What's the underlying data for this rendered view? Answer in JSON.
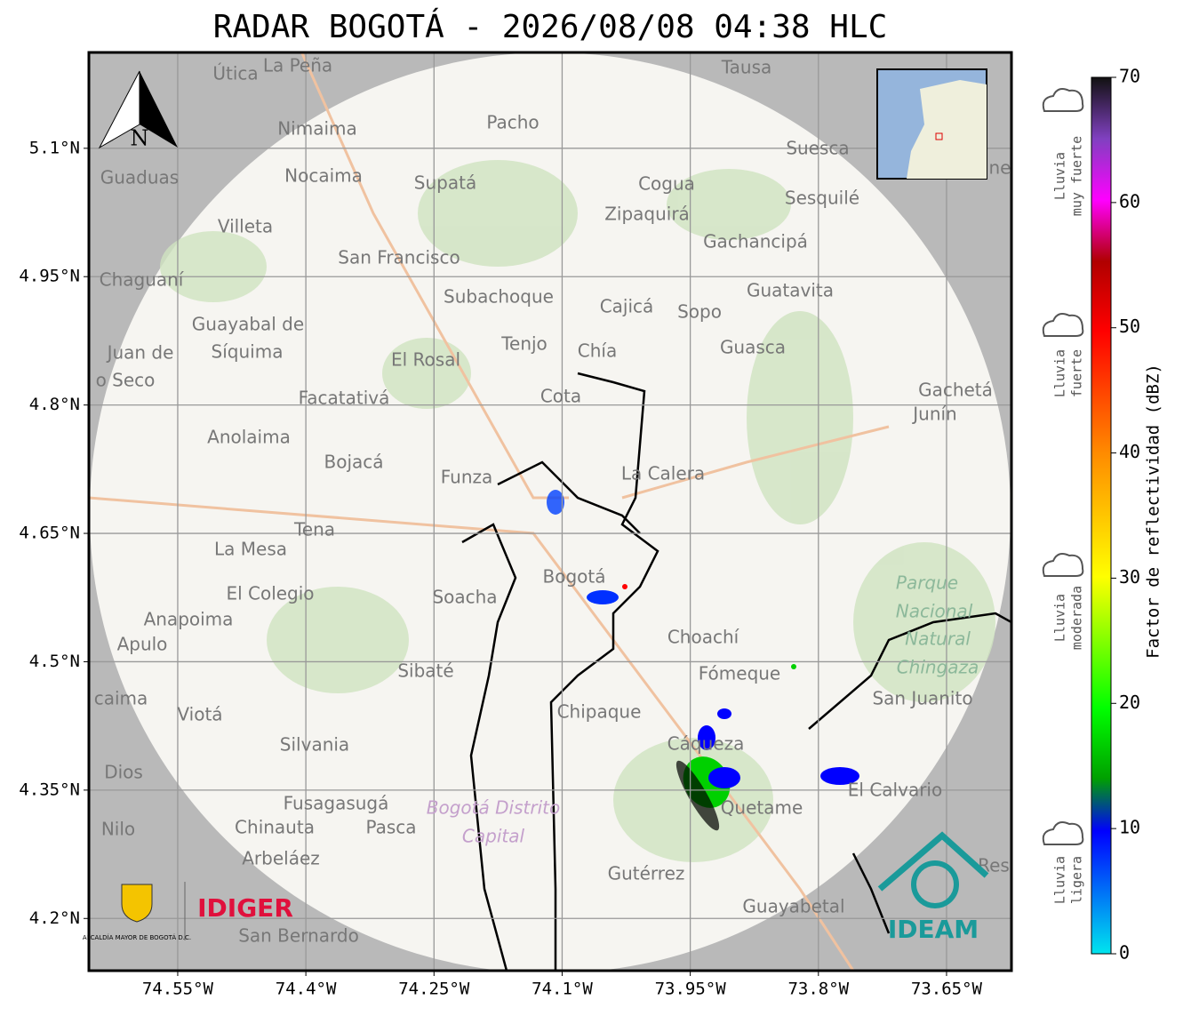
{
  "title": "RADAR BOGOTÁ - 2026/08/08 04:38 HLC",
  "map": {
    "xlim": [
      -74.654,
      -73.574
    ],
    "ylim": [
      4.139,
      5.212
    ],
    "xticks": [
      {
        "value": -74.55,
        "label": "74.55°W"
      },
      {
        "value": -74.4,
        "label": "74.4°W"
      },
      {
        "value": -74.25,
        "label": "74.25°W"
      },
      {
        "value": -74.1,
        "label": "74.1°W"
      },
      {
        "value": -73.95,
        "label": "73.95°W"
      },
      {
        "value": -73.8,
        "label": "73.8°W"
      },
      {
        "value": -73.65,
        "label": "73.65°W"
      }
    ],
    "yticks": [
      {
        "value": 5.1,
        "label": "5.1°N"
      },
      {
        "value": 4.95,
        "label": "4.95°N"
      },
      {
        "value": 4.8,
        "label": "4.8°N"
      },
      {
        "value": 4.65,
        "label": "4.65°N"
      },
      {
        "value": 4.5,
        "label": "4.5°N"
      },
      {
        "value": 4.35,
        "label": "4.35°N"
      },
      {
        "value": 4.2,
        "label": "4.2°N"
      }
    ],
    "grid": true,
    "north": "N",
    "places": [
      "Útica",
      "La Peña",
      "Tausa",
      "Pacho",
      "Nimaima",
      "Guaduas",
      "Nocaima",
      "Supatá",
      "Cogua",
      "Suesca",
      "Sesquilé",
      "Zipaquirá",
      "Villeta",
      "Gachancipá",
      "San Francisco",
      "Chaguaní",
      "Guatavita",
      "Subachoque",
      "Cajicá",
      "Sopo",
      "Guayabal de",
      "Síquima",
      "Juan de",
      "o Seco",
      "Tenjo",
      "Chía",
      "El Rosal",
      "Guasca",
      "Facatativá",
      "Cota",
      "Gachetá",
      "Junín",
      "Anolaima",
      "Bojacá",
      "Funza",
      "La Calera",
      "Tena",
      "La Mesa",
      "Bogotá",
      "El Colegio",
      "Soacha",
      "Anapoima",
      "Apulo",
      "Choachí",
      "Sibaté",
      "Fómeque",
      "San Juanito",
      "caima",
      "Viotá",
      "Chipaque",
      "Cáqueza",
      "Silvania",
      "Dios",
      "El Calvario",
      "Fusagasugá",
      "Quetame",
      "Chinauta",
      "Pasca",
      "Nilo",
      "Arbeláez",
      "Res",
      "Gutérrez",
      "Guayabetal",
      "San Bernardo",
      "ne"
    ],
    "park": [
      "Parque",
      "Nacional",
      "Natural",
      "Chingaza"
    ],
    "district": [
      "Bogotá Distrito",
      "Capital"
    ]
  },
  "logos": {
    "alcaldia": "ALCALDÍA MAYOR DE BOGOTÁ D.C.",
    "idiger": "IDIGER",
    "ideam": "IDEAM"
  },
  "colorbar": {
    "label": "Factor de reflectividad (dBZ)",
    "lim": [
      0,
      70
    ],
    "ticks": [
      0,
      10,
      20,
      30,
      40,
      50,
      60,
      70
    ],
    "categories": [
      [
        "Lluvia",
        "ligera"
      ],
      [
        "Lluvia",
        "moderada"
      ],
      [
        "Lluvia",
        "fuerte"
      ],
      [
        "Lluvia",
        "muy fuerte"
      ]
    ]
  }
}
